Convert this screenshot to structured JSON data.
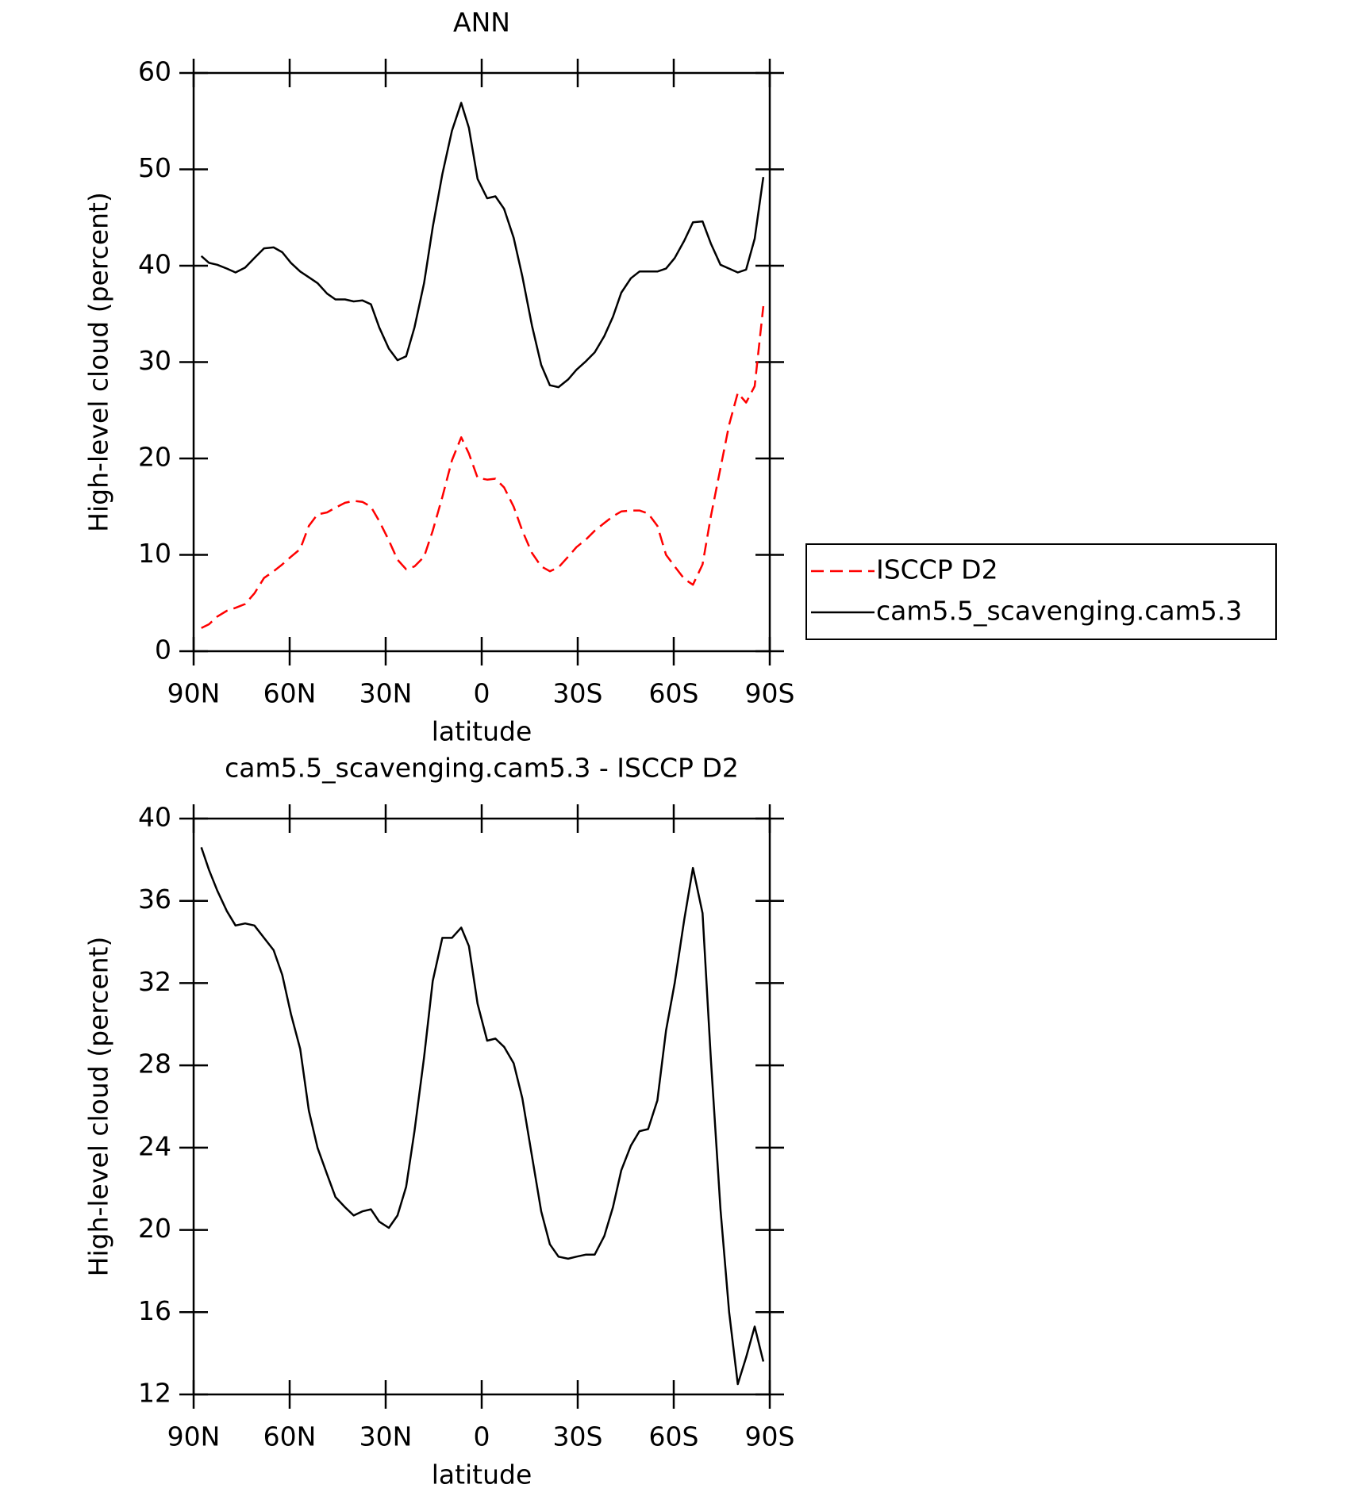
{
  "chart_data": [
    {
      "type": "line",
      "title": "ANN",
      "xlabel": "latitude",
      "ylabel": "High-level cloud (percent)",
      "xlim": [
        90,
        -90
      ],
      "xticks": [
        {
          "value": 90,
          "label": "90N"
        },
        {
          "value": 60,
          "label": "60N"
        },
        {
          "value": 30,
          "label": "30N"
        },
        0,
        {
          "value": -30,
          "label": "30S"
        },
        {
          "value": -60,
          "label": "60S"
        },
        {
          "value": -90,
          "label": "90S"
        }
      ],
      "ylim": [
        0,
        60
      ],
      "yticks": [
        0,
        10,
        20,
        30,
        40,
        50,
        60
      ],
      "legend": "outside-right",
      "x": [
        87.6,
        85.2,
        82.6,
        79.6,
        76.9,
        73.9,
        71.0,
        68.0,
        65.0,
        62.3,
        59.6,
        56.7,
        54.0,
        51.3,
        48.3,
        45.7,
        42.7,
        40.0,
        37.3,
        34.6,
        32.0,
        29.0,
        26.3,
        23.6,
        21.0,
        18.0,
        15.3,
        12.3,
        9.3,
        6.4,
        4.0,
        1.3,
        -1.7,
        -4.3,
        -7.0,
        -10.0,
        -12.7,
        -15.7,
        -18.6,
        -21.3,
        -24.0,
        -27.0,
        -29.6,
        -32.6,
        -35.3,
        -38.3,
        -41.0,
        -43.6,
        -46.6,
        -49.3,
        -52.0,
        -54.9,
        -57.6,
        -60.3,
        -63.3,
        -66.0,
        -69.0,
        -71.6,
        -74.6,
        -77.3,
        -80.0,
        -82.6,
        -85.3,
        -88.0
      ],
      "series": [
        {
          "name": "ISCCP D2",
          "color": "#ff0000",
          "line_style": "dashed",
          "values": [
            2.4,
            2.8,
            3.6,
            4.2,
            4.5,
            4.9,
            6.0,
            7.6,
            8.3,
            9.0,
            9.8,
            10.6,
            13.0,
            14.2,
            14.4,
            14.9,
            15.4,
            15.6,
            15.5,
            15.0,
            13.5,
            11.5,
            9.5,
            8.5,
            8.8,
            9.8,
            12.5,
            16.0,
            19.8,
            22.2,
            20.5,
            18.0,
            17.8,
            17.9,
            17.0,
            15.0,
            12.5,
            10.2,
            8.8,
            8.3,
            8.7,
            9.8,
            10.8,
            11.6,
            12.5,
            13.3,
            14.0,
            14.5,
            14.6,
            14.6,
            14.3,
            13.0,
            10.0,
            8.8,
            7.5,
            6.9,
            9.0,
            14.0,
            19.0,
            23.5,
            26.8,
            25.8,
            27.5,
            35.8
          ]
        },
        {
          "name": "cam5.5_scavenging.cam5.3",
          "color": "#000000",
          "line_style": "solid",
          "values": [
            41.0,
            40.3,
            40.1,
            39.7,
            39.3,
            39.8,
            40.8,
            41.8,
            41.9,
            41.4,
            40.3,
            39.4,
            38.8,
            38.2,
            37.1,
            36.5,
            36.5,
            36.3,
            36.4,
            36.0,
            33.6,
            31.4,
            30.2,
            30.6,
            33.6,
            38.2,
            44.0,
            49.5,
            54.0,
            56.9,
            54.3,
            49.0,
            47.0,
            47.2,
            45.9,
            42.9,
            38.9,
            33.8,
            29.7,
            27.6,
            27.4,
            28.2,
            29.2,
            30.1,
            31.0,
            32.7,
            34.7,
            37.2,
            38.7,
            39.4,
            39.4,
            39.4,
            39.7,
            40.8,
            42.6,
            44.5,
            44.6,
            42.3,
            40.1,
            39.7,
            39.3,
            39.6,
            42.8,
            49.2
          ]
        }
      ]
    },
    {
      "type": "line",
      "title": "cam5.5_scavenging.cam5.3 - ISCCP D2",
      "xlabel": "latitude",
      "ylabel": "High-level cloud (percent)",
      "xlim": [
        90,
        -90
      ],
      "xticks": [
        {
          "value": 90,
          "label": "90N"
        },
        {
          "value": 60,
          "label": "60N"
        },
        {
          "value": 30,
          "label": "30N"
        },
        0,
        {
          "value": -30,
          "label": "30S"
        },
        {
          "value": -60,
          "label": "60S"
        },
        {
          "value": -90,
          "label": "90S"
        }
      ],
      "ylim": [
        12,
        40
      ],
      "yticks": [
        12,
        16,
        20,
        24,
        28,
        32,
        36,
        40
      ],
      "x": [
        87.6,
        85.2,
        82.6,
        79.6,
        76.9,
        73.9,
        71.0,
        68.0,
        65.0,
        62.3,
        59.6,
        56.7,
        54.0,
        51.3,
        48.3,
        45.7,
        42.7,
        40.0,
        37.3,
        34.6,
        32.0,
        29.0,
        26.3,
        23.6,
        21.0,
        18.0,
        15.3,
        12.3,
        9.3,
        6.4,
        4.0,
        1.3,
        -1.7,
        -4.3,
        -7.0,
        -10.0,
        -12.7,
        -15.7,
        -18.6,
        -21.3,
        -24.0,
        -27.0,
        -29.6,
        -32.6,
        -35.3,
        -38.3,
        -41.0,
        -43.6,
        -46.6,
        -49.3,
        -52.0,
        -54.9,
        -57.6,
        -60.3,
        -63.3,
        -66.0,
        -69.0,
        -71.6,
        -74.6,
        -77.3,
        -80.0,
        -82.6,
        -85.3,
        -88.0
      ],
      "series": [
        {
          "color": "#000000",
          "line_style": "solid",
          "values": [
            38.6,
            37.5,
            36.5,
            35.5,
            34.8,
            34.9,
            34.8,
            34.2,
            33.6,
            32.4,
            30.5,
            28.8,
            25.8,
            24.0,
            22.7,
            21.6,
            21.1,
            20.7,
            20.9,
            21.0,
            20.4,
            20.1,
            20.7,
            22.1,
            24.8,
            28.4,
            32.1,
            34.2,
            34.2,
            34.7,
            33.8,
            31.0,
            29.2,
            29.3,
            28.9,
            28.1,
            26.4,
            23.6,
            20.9,
            19.3,
            18.7,
            18.6,
            18.7,
            18.8,
            18.8,
            19.7,
            21.1,
            22.9,
            24.1,
            24.8,
            24.9,
            26.3,
            29.7,
            32.0,
            35.1,
            37.6,
            35.4,
            28.3,
            21.0,
            16.0,
            12.5,
            13.8,
            15.3,
            13.6
          ]
        }
      ]
    }
  ]
}
